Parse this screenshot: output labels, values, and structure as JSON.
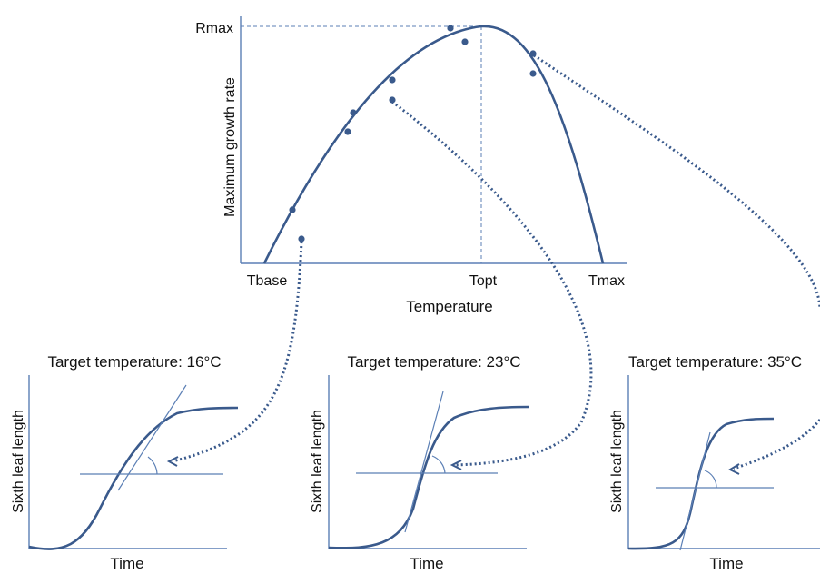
{
  "main": {
    "ylabel": "Maximum growth rate",
    "xlabel": "Temperature",
    "rmax": "Rmax",
    "tbase": "Tbase",
    "topt": "Topt",
    "tmax": "Tmax"
  },
  "panels": [
    {
      "title": "Target temperature: 16°C",
      "ylabel": "Sixth leaf length",
      "xlabel": "Time"
    },
    {
      "title": "Target temperature: 23°C",
      "ylabel": "Sixth leaf length",
      "xlabel": "Time"
    },
    {
      "title": "Target temperature: 35°C",
      "ylabel": "Sixth leaf length",
      "xlabel": "Time"
    }
  ],
  "colors": {
    "curve": "#3a5a8c",
    "axis": "#5b7fb5",
    "dots": "#3a5a8c",
    "dashed": "#5b7fb5"
  }
}
